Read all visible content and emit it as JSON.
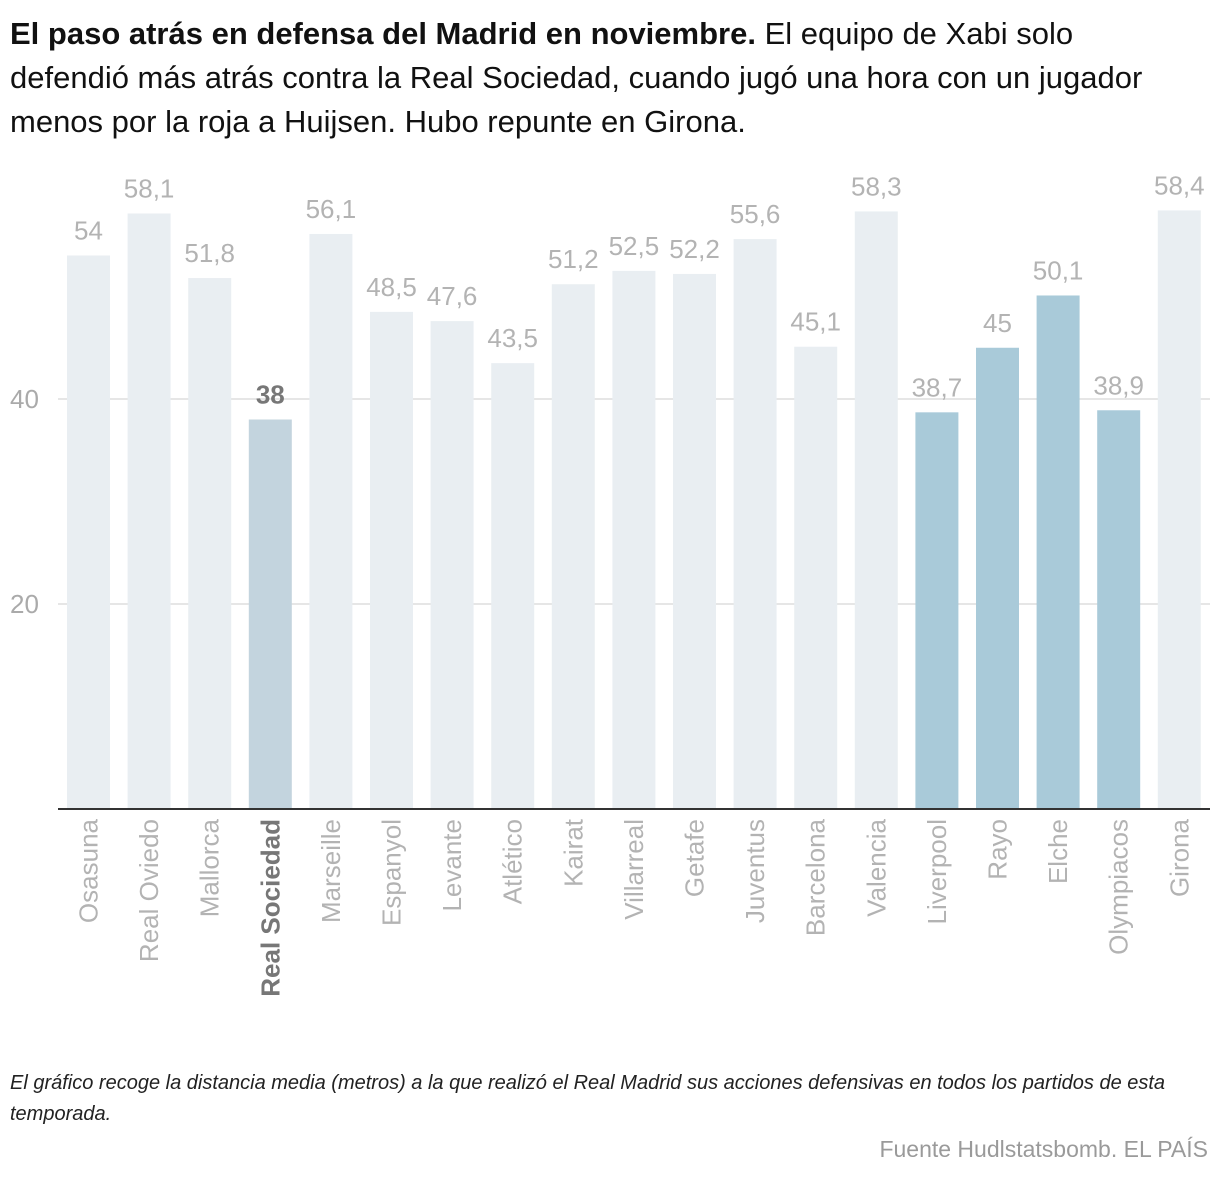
{
  "headline": {
    "lead": "El paso atrás en defensa del Madrid en noviembre.",
    "text": " El equipo de Xabi solo defendió más atrás contra la Real Sociedad, cuando jugó una hora con un jugador menos por la roja a Huijsen. Hubo repunte en Girona."
  },
  "chart_data": {
    "type": "bar",
    "categories": [
      "Osasuna",
      "Real Oviedo",
      "Mallorca",
      "Real Sociedad",
      "Marseille",
      "Espanyol",
      "Levante",
      "Atlético",
      "Kairat",
      "Villarreal",
      "Getafe",
      "Juventus",
      "Barcelona",
      "Valencia",
      "Liverpool",
      "Rayo",
      "Elche",
      "Olympiacos",
      "Girona"
    ],
    "values": [
      54,
      58.1,
      51.8,
      38,
      56.1,
      48.5,
      47.6,
      43.5,
      51.2,
      52.5,
      52.2,
      55.6,
      45.1,
      58.3,
      38.7,
      45,
      50.1,
      38.9,
      58.4
    ],
    "value_labels": [
      "54",
      "58,1",
      "51,8",
      "38",
      "56,1",
      "48,5",
      "47,6",
      "43,5",
      "51,2",
      "52,5",
      "52,2",
      "55,6",
      "45,1",
      "58,3",
      "38,7",
      "45",
      "50,1",
      "38,9",
      "58,4"
    ],
    "highlight": [
      false,
      false,
      false,
      true,
      false,
      false,
      false,
      false,
      false,
      false,
      false,
      false,
      false,
      false,
      false,
      false,
      false,
      false,
      false
    ],
    "november": [
      false,
      false,
      false,
      false,
      false,
      false,
      false,
      false,
      false,
      false,
      false,
      false,
      false,
      false,
      true,
      true,
      true,
      true,
      false
    ],
    "yticks": [
      20,
      40
    ],
    "ytick_labels": [
      "20",
      "40"
    ],
    "ylim": [
      0,
      60
    ],
    "grid": true,
    "colors": {
      "default": "#e9eef2",
      "highlight": "#c3d4de",
      "november": "#a9cad9",
      "grid": "#e6e6e6",
      "axis": "#333333",
      "label": "#b3b3b3",
      "label_highlight": "#777777",
      "tick": "#aaaaaa"
    }
  },
  "note": "El gráfico recoge la distancia media (metros) a la que realizó el Real Madrid sus acciones defensivas en todos los partidos de esta temporada.",
  "source": "Fuente Hudlstatsbomb. EL PAÍS"
}
